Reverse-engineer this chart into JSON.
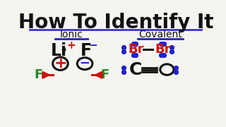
{
  "title": "How To Identify It",
  "title_fontsize": 20,
  "title_color": "#111111",
  "bg_color": "#f5f5f0",
  "ionic_label": "Ionic",
  "covalent_label": "Covalent",
  "header_color": "#111111",
  "underline_color": "#2222cc",
  "divider_color": "#2222cc",
  "plus_color": "#cc1111",
  "minus_color": "#2222cc",
  "f_color_label": "#228B22",
  "arrow_color": "#cc1111",
  "circle_color": "#111111",
  "br_color": "#cc1111",
  "dot_color": "#2222cc",
  "bond_color": "#111111",
  "li_color": "#111111",
  "f_color": "#111111",
  "c_color": "#111111",
  "o_color": "#111111"
}
